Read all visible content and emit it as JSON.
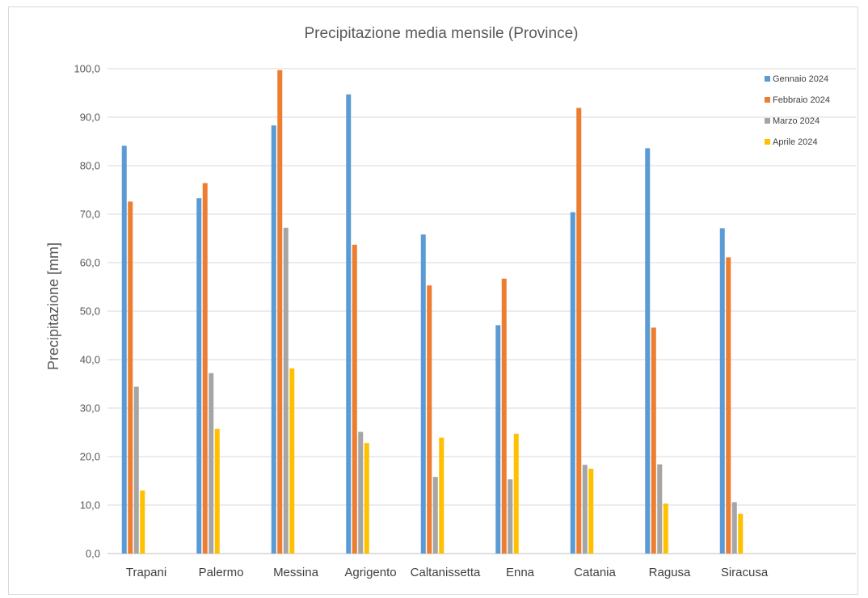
{
  "chart_data": {
    "type": "bar",
    "title": "Precipitazione media mensile (Province)",
    "xlabel": "",
    "ylabel": "Precipitazione [mm]",
    "ylim": [
      0,
      100
    ],
    "ytick_step": 10,
    "ytick_labels": [
      "0,0",
      "10,0",
      "20,0",
      "30,0",
      "40,0",
      "50,0",
      "60,0",
      "70,0",
      "80,0",
      "90,0",
      "100,0"
    ],
    "grid": true,
    "legend_position": "top-right",
    "categories": [
      "Trapani",
      "Palermo",
      "Messina",
      "Agrigento",
      "Caltanissetta",
      "Enna",
      "Catania",
      "Ragusa",
      "Siracusa"
    ],
    "series": [
      {
        "name": "Gennaio 2024",
        "color": "#5b9bd5",
        "values": [
          84.1,
          73.3,
          88.3,
          94.7,
          65.8,
          47.1,
          70.4,
          83.6,
          67.1
        ]
      },
      {
        "name": "Febbraio 2024",
        "color": "#ed7d31",
        "values": [
          72.6,
          76.4,
          99.7,
          63.7,
          55.3,
          56.7,
          91.9,
          46.6,
          61.1
        ]
      },
      {
        "name": "Marzo 2024",
        "color": "#a5a5a5",
        "values": [
          34.4,
          37.2,
          67.2,
          25.1,
          15.8,
          15.3,
          18.3,
          18.4,
          10.6
        ]
      },
      {
        "name": "Aprile 2024",
        "color": "#ffc000",
        "values": [
          13.0,
          25.7,
          38.2,
          22.8,
          23.9,
          24.7,
          17.5,
          10.3,
          8.2
        ]
      }
    ]
  }
}
